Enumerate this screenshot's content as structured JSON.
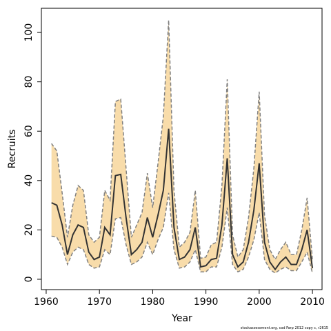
{
  "chart_data": {
    "type": "band-line",
    "xlabel": "Year",
    "ylabel": "Recruits",
    "note": "stockassessment.org, cod Farp 2012 copy c, r2615",
    "x": [
      1961,
      1962,
      1963,
      1964,
      1965,
      1966,
      1967,
      1968,
      1969,
      1970,
      1971,
      1972,
      1973,
      1974,
      1975,
      1976,
      1977,
      1978,
      1979,
      1980,
      1981,
      1982,
      1983,
      1984,
      1985,
      1986,
      1987,
      1988,
      1989,
      1990,
      1991,
      1992,
      1993,
      1994,
      1995,
      1996,
      1997,
      1998,
      1999,
      2000,
      2001,
      2002,
      2003,
      2004,
      2005,
      2006,
      2007,
      2008,
      2009,
      2010
    ],
    "values": [
      31,
      30,
      22,
      10,
      18,
      22,
      21,
      11,
      8,
      9,
      21,
      18,
      42,
      42.5,
      25,
      10,
      12,
      15,
      25,
      17,
      26,
      36,
      61,
      21,
      8,
      9,
      12,
      21,
      5,
      5.5,
      8,
      8.5,
      22,
      49,
      10,
      5,
      7,
      15,
      28,
      47,
      15,
      7,
      4,
      7,
      9,
      6,
      6,
      12,
      20,
      4.5
    ],
    "upper": [
      55,
      52,
      35,
      17,
      30,
      38,
      36,
      18,
      15,
      17,
      36,
      32,
      72,
      73,
      45,
      17,
      22,
      27,
      43,
      29,
      47,
      66,
      105,
      36,
      13,
      15,
      19,
      36,
      8.5,
      9,
      14,
      15,
      38,
      81,
      18,
      9,
      12,
      25,
      45,
      76,
      26,
      12,
      8,
      12,
      15,
      10,
      10,
      20,
      33,
      8
    ],
    "lower": [
      17.5,
      17,
      13,
      6,
      11,
      13,
      12,
      6,
      4.5,
      5,
      12,
      10,
      24.5,
      25,
      14,
      6,
      7,
      9,
      15,
      10,
      16,
      21,
      35,
      12,
      4.5,
      5,
      7,
      12,
      3,
      3,
      5,
      5,
      13,
      29,
      6,
      3,
      4,
      9,
      16,
      27,
      8,
      4,
      2.5,
      4,
      5,
      3.5,
      3.5,
      7,
      11,
      2.5
    ],
    "color": "#333333",
    "band_color": "#f8dcaa",
    "band_edge_color": "#808080",
    "xlim": [
      1959.1,
      2011.8
    ],
    "xticks": [
      1960,
      1970,
      1980,
      1990,
      2000,
      2010
    ],
    "ylim": [
      -4.2,
      109.8
    ],
    "yticks": [
      0,
      20,
      40,
      60,
      80,
      100
    ]
  }
}
